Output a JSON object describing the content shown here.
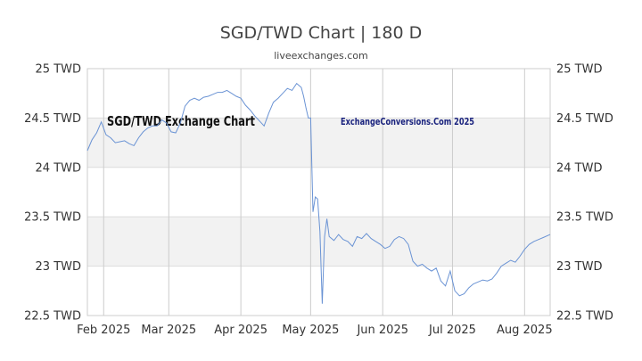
{
  "chart_data": {
    "type": "line",
    "title": "SGD/TWD Chart | 180 D",
    "subtitle": "liveexchanges.com",
    "watermark_left": "SGD/TWD Exchange Chart",
    "watermark_right": "ExchangeConversions.Com 2025",
    "x_range": [
      "2025-01-25",
      "2025-08-12"
    ],
    "ylim": [
      22.5,
      25
    ],
    "y_ticks": [
      22.5,
      23,
      23.5,
      24,
      24.5,
      25
    ],
    "y_tick_labels": [
      "22.5 TWD",
      "23 TWD",
      "23.5 TWD",
      "24 TWD",
      "24.5 TWD",
      "25 TWD"
    ],
    "x_ticks": [
      {
        "date": "2025-02-01",
        "label": "Feb 2025"
      },
      {
        "date": "2025-03-01",
        "label": "Mar 2025"
      },
      {
        "date": "2025-04-01",
        "label": "Apr 2025"
      },
      {
        "date": "2025-05-01",
        "label": "May 2025"
      },
      {
        "date": "2025-06-01",
        "label": "Jun 2025"
      },
      {
        "date": "2025-07-01",
        "label": "Jul 2025"
      },
      {
        "date": "2025-08-01",
        "label": "Aug 2025"
      }
    ],
    "grid": true,
    "line_color": "#6a93d4",
    "band_color": "#f2f2f2",
    "series": [
      {
        "points": [
          [
            "2025-01-25",
            24.17
          ],
          [
            "2025-01-27",
            24.28
          ],
          [
            "2025-01-29",
            24.35
          ],
          [
            "2025-01-31",
            24.46
          ],
          [
            "2025-02-02",
            24.33
          ],
          [
            "2025-02-04",
            24.3
          ],
          [
            "2025-02-06",
            24.25
          ],
          [
            "2025-02-08",
            24.26
          ],
          [
            "2025-02-10",
            24.27
          ],
          [
            "2025-02-12",
            24.24
          ],
          [
            "2025-02-14",
            24.22
          ],
          [
            "2025-02-16",
            24.3
          ],
          [
            "2025-02-18",
            24.36
          ],
          [
            "2025-02-20",
            24.4
          ],
          [
            "2025-02-22",
            24.42
          ],
          [
            "2025-02-24",
            24.42
          ],
          [
            "2025-02-26",
            24.48
          ],
          [
            "2025-02-28",
            24.45
          ],
          [
            "2025-03-02",
            24.36
          ],
          [
            "2025-03-04",
            24.35
          ],
          [
            "2025-03-06",
            24.45
          ],
          [
            "2025-03-08",
            24.62
          ],
          [
            "2025-03-10",
            24.68
          ],
          [
            "2025-03-12",
            24.7
          ],
          [
            "2025-03-14",
            24.68
          ],
          [
            "2025-03-16",
            24.71
          ],
          [
            "2025-03-18",
            24.72
          ],
          [
            "2025-03-20",
            24.74
          ],
          [
            "2025-03-22",
            24.76
          ],
          [
            "2025-03-24",
            24.76
          ],
          [
            "2025-03-26",
            24.78
          ],
          [
            "2025-03-28",
            24.75
          ],
          [
            "2025-03-30",
            24.72
          ],
          [
            "2025-04-01",
            24.7
          ],
          [
            "2025-04-03",
            24.63
          ],
          [
            "2025-04-05",
            24.58
          ],
          [
            "2025-04-07",
            24.52
          ],
          [
            "2025-04-09",
            24.47
          ],
          [
            "2025-04-11",
            24.42
          ],
          [
            "2025-04-13",
            24.55
          ],
          [
            "2025-04-15",
            24.66
          ],
          [
            "2025-04-17",
            24.7
          ],
          [
            "2025-04-19",
            24.75
          ],
          [
            "2025-04-21",
            24.8
          ],
          [
            "2025-04-23",
            24.78
          ],
          [
            "2025-04-25",
            24.85
          ],
          [
            "2025-04-27",
            24.81
          ],
          [
            "2025-04-28",
            24.72
          ],
          [
            "2025-04-29",
            24.6
          ],
          [
            "2025-04-30",
            24.5
          ],
          [
            "2025-05-01",
            24.5
          ],
          [
            "2025-05-02",
            23.55
          ],
          [
            "2025-05-03",
            23.7
          ],
          [
            "2025-05-04",
            23.68
          ],
          [
            "2025-05-05",
            23.35
          ],
          [
            "2025-05-06",
            22.62
          ],
          [
            "2025-05-07",
            23.3
          ],
          [
            "2025-05-08",
            23.48
          ],
          [
            "2025-05-09",
            23.3
          ],
          [
            "2025-05-11",
            23.26
          ],
          [
            "2025-05-13",
            23.32
          ],
          [
            "2025-05-15",
            23.27
          ],
          [
            "2025-05-17",
            23.25
          ],
          [
            "2025-05-19",
            23.2
          ],
          [
            "2025-05-21",
            23.3
          ],
          [
            "2025-05-23",
            23.28
          ],
          [
            "2025-05-25",
            23.33
          ],
          [
            "2025-05-27",
            23.28
          ],
          [
            "2025-05-29",
            23.25
          ],
          [
            "2025-05-31",
            23.22
          ],
          [
            "2025-06-02",
            23.18
          ],
          [
            "2025-06-04",
            23.2
          ],
          [
            "2025-06-06",
            23.27
          ],
          [
            "2025-06-08",
            23.3
          ],
          [
            "2025-06-10",
            23.28
          ],
          [
            "2025-06-12",
            23.22
          ],
          [
            "2025-06-14",
            23.05
          ],
          [
            "2025-06-16",
            23.0
          ],
          [
            "2025-06-18",
            23.02
          ],
          [
            "2025-06-20",
            22.98
          ],
          [
            "2025-06-22",
            22.95
          ],
          [
            "2025-06-24",
            22.98
          ],
          [
            "2025-06-26",
            22.85
          ],
          [
            "2025-06-28",
            22.8
          ],
          [
            "2025-06-30",
            22.95
          ],
          [
            "2025-07-02",
            22.75
          ],
          [
            "2025-07-04",
            22.7
          ],
          [
            "2025-07-06",
            22.72
          ],
          [
            "2025-07-08",
            22.78
          ],
          [
            "2025-07-10",
            22.82
          ],
          [
            "2025-07-12",
            22.84
          ],
          [
            "2025-07-14",
            22.86
          ],
          [
            "2025-07-16",
            22.85
          ],
          [
            "2025-07-18",
            22.87
          ],
          [
            "2025-07-20",
            22.93
          ],
          [
            "2025-07-22",
            23.0
          ],
          [
            "2025-07-24",
            23.03
          ],
          [
            "2025-07-26",
            23.06
          ],
          [
            "2025-07-28",
            23.04
          ],
          [
            "2025-07-30",
            23.1
          ],
          [
            "2025-08-01",
            23.17
          ],
          [
            "2025-08-03",
            23.22
          ],
          [
            "2025-08-05",
            23.25
          ],
          [
            "2025-08-07",
            23.27
          ],
          [
            "2025-08-09",
            23.29
          ],
          [
            "2025-08-12",
            23.32
          ]
        ]
      }
    ]
  }
}
